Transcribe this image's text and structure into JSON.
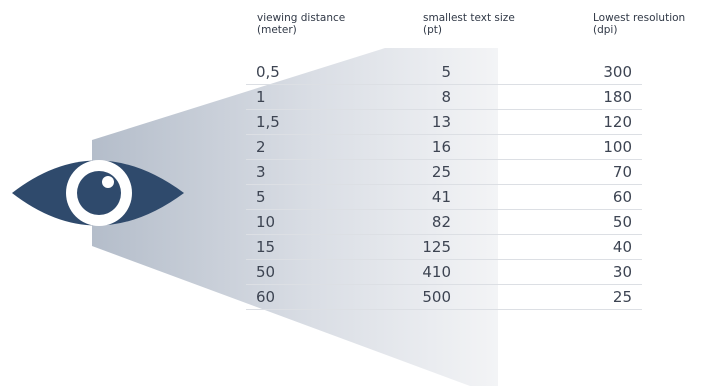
{
  "headers": {
    "distance": "viewing distance\n(meter)",
    "text_size": "smallest text size\n(pt)",
    "resolution": "Lowest resolution\n(dpi)"
  },
  "rows": [
    {
      "distance": "0,5",
      "text_size": "5",
      "resolution": "300"
    },
    {
      "distance": "1",
      "text_size": "8",
      "resolution": "180"
    },
    {
      "distance": "1,5",
      "text_size": "13",
      "resolution": "120"
    },
    {
      "distance": "2",
      "text_size": "16",
      "resolution": "100"
    },
    {
      "distance": "3",
      "text_size": "25",
      "resolution": "70"
    },
    {
      "distance": "5",
      "text_size": "41",
      "resolution": "60"
    },
    {
      "distance": "10",
      "text_size": "82",
      "resolution": "50"
    },
    {
      "distance": "15",
      "text_size": "125",
      "resolution": "40"
    },
    {
      "distance": "50",
      "text_size": "410",
      "resolution": "30"
    },
    {
      "distance": "60",
      "text_size": "500",
      "resolution": "25"
    }
  ],
  "colors": {
    "eye": "#2f4a6c",
    "cone_dark": "#b9c2cf",
    "cone_light": "#eef0f3",
    "text": "#3d4452",
    "rule": "#dcdfe4"
  },
  "icons": {
    "eye": "eye-icon"
  }
}
